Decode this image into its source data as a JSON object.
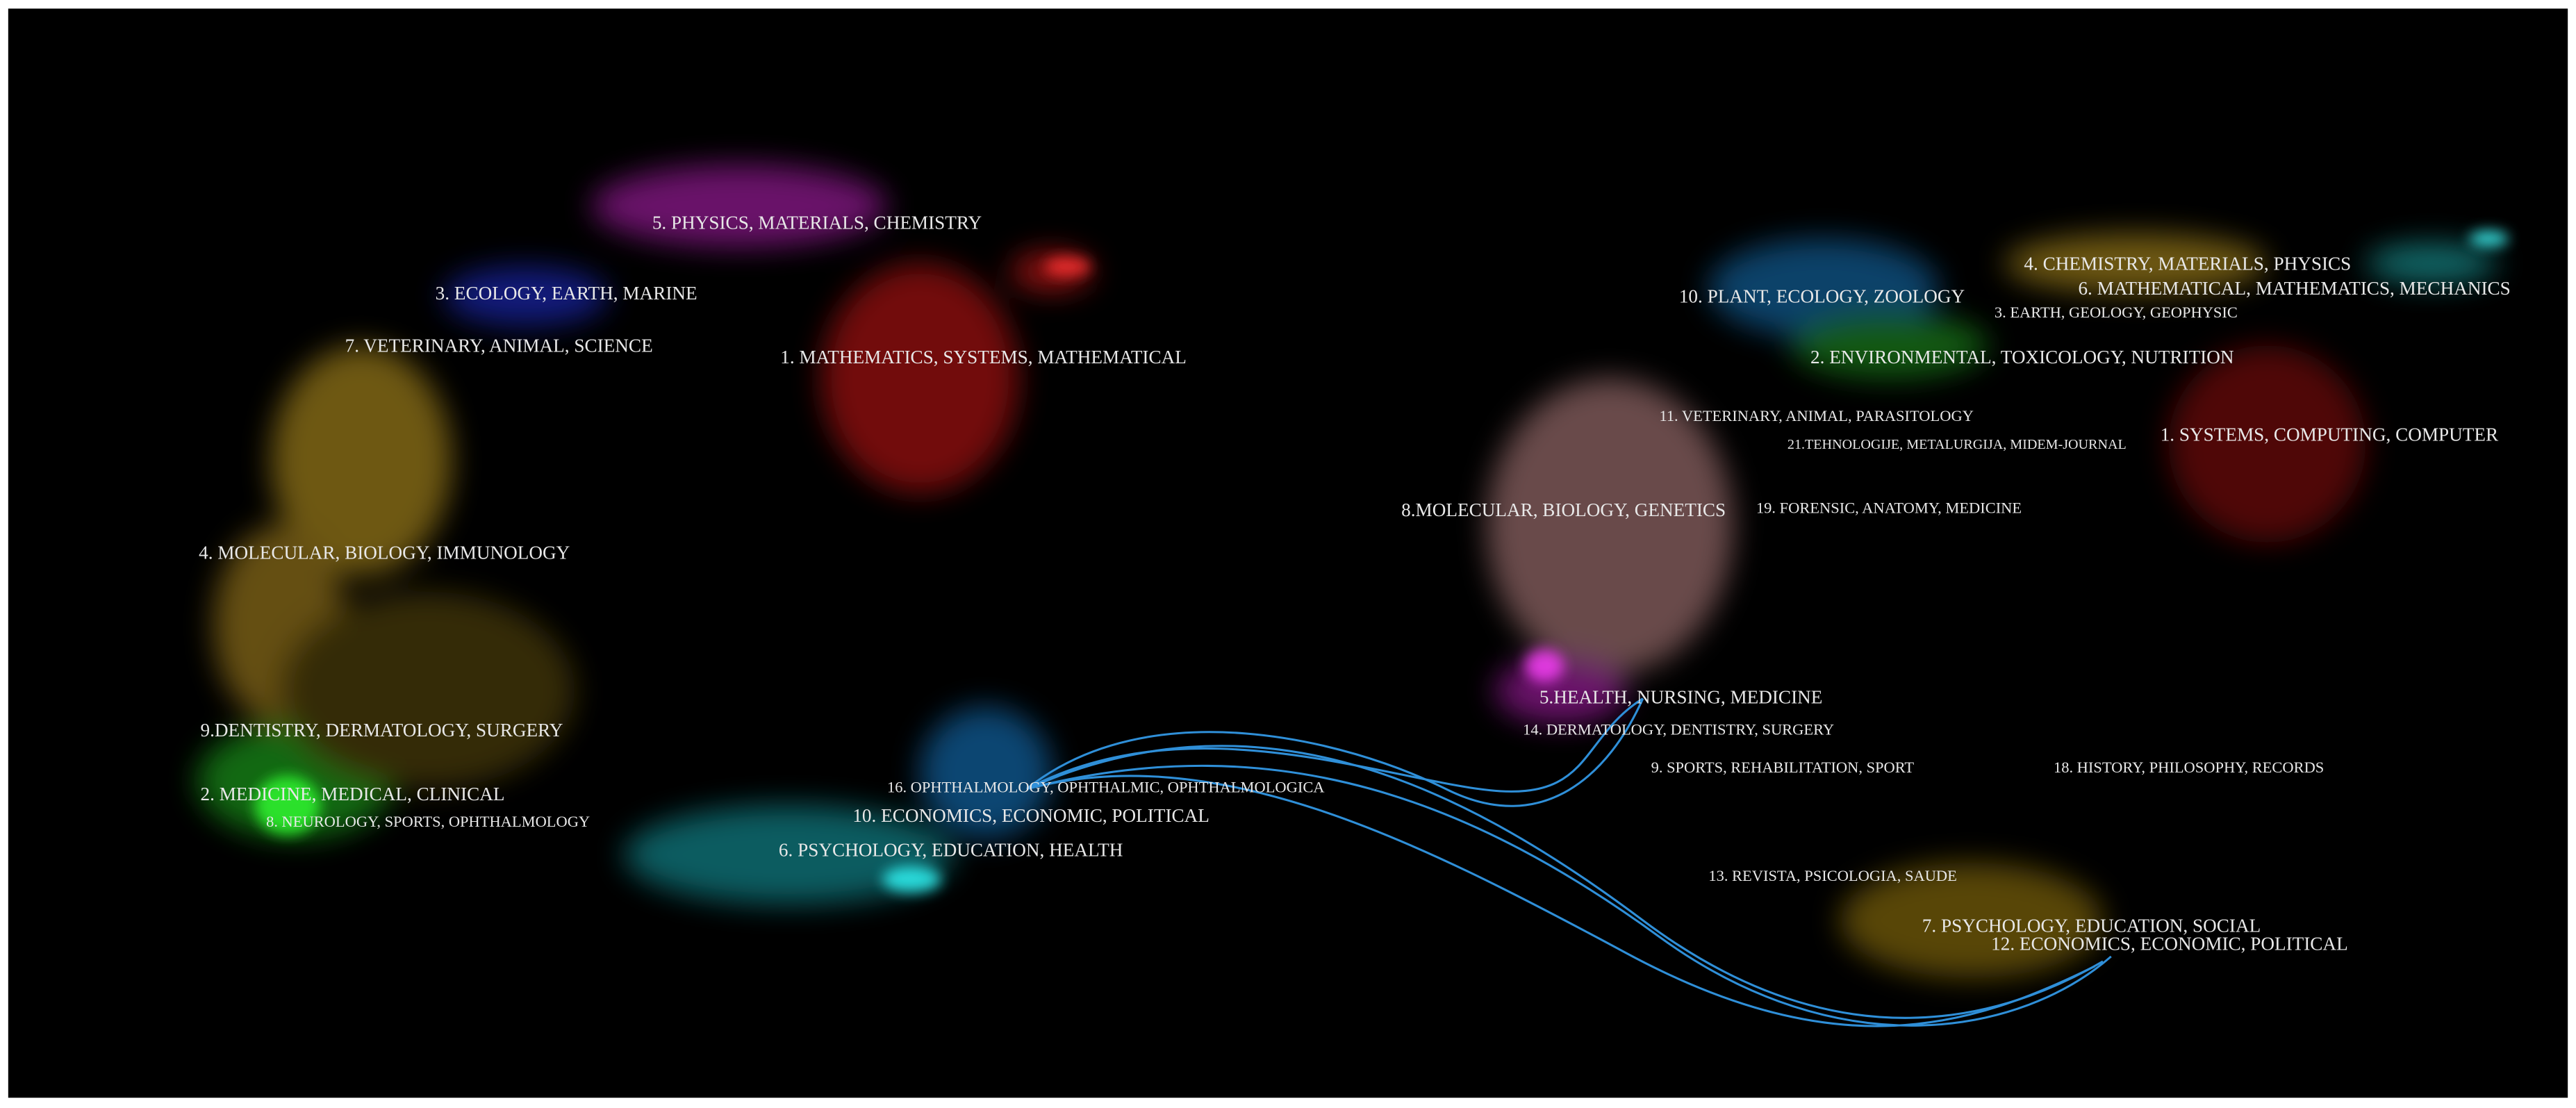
{
  "left_map": {
    "labels": [
      "5. PHYSICS, MATERIALS, CHEMISTRY",
      "3. ECOLOGY, EARTH, MARINE",
      "7. VETERINARY, ANIMAL, SCIENCE",
      "1. MATHEMATICS, SYSTEMS, MATHEMATICAL",
      "4. MOLECULAR, BIOLOGY, IMMUNOLOGY",
      "9.DENTISTRY, DERMATOLOGY, SURGERY",
      "2. MEDICINE, MEDICAL, CLINICAL",
      "8. NEUROLOGY, SPORTS, OPHTHALMOLOGY",
      "16. OPHTHALMOLOGY, OPHTHALMIC, OPHTHALMOLOGICA",
      "10. ECONOMICS, ECONOMIC, POLITICAL",
      "6. PSYCHOLOGY, EDUCATION, HEALTH"
    ]
  },
  "right_map": {
    "labels": [
      "4. CHEMISTRY, MATERIALS, PHYSICS",
      "6. MATHEMATICAL, MATHEMATICS, MECHANICS",
      "10. PLANT, ECOLOGY, ZOOLOGY",
      "3. EARTH, GEOLOGY, GEOPHYSIC",
      "2. ENVIRONMENTAL, TOXICOLOGY, NUTRITION",
      "11. VETERINARY, ANIMAL, PARASITOLOGY",
      "21.TEHNOLOGIJE, METALURGIJA, MIDEM-JOURNAL",
      "1. SYSTEMS, COMPUTING, COMPUTER",
      "8.MOLECULAR, BIOLOGY, GENETICS",
      "19. FORENSIC, ANATOMY, MEDICINE",
      "5.HEALTH, NURSING, MEDICINE",
      "14. DERMATOLOGY, DENTISTRY, SURGERY",
      "9. SPORTS, REHABILITATION, SPORT",
      "18. HISTORY, PHILOSOPHY, RECORDS",
      "13. REVISTA, PSICOLOGIA, SAUDE",
      "7. PSYCHOLOGY, EDUCATION, SOCIAL",
      "12. ECONOMICS, ECONOMIC, POLITICAL"
    ]
  }
}
